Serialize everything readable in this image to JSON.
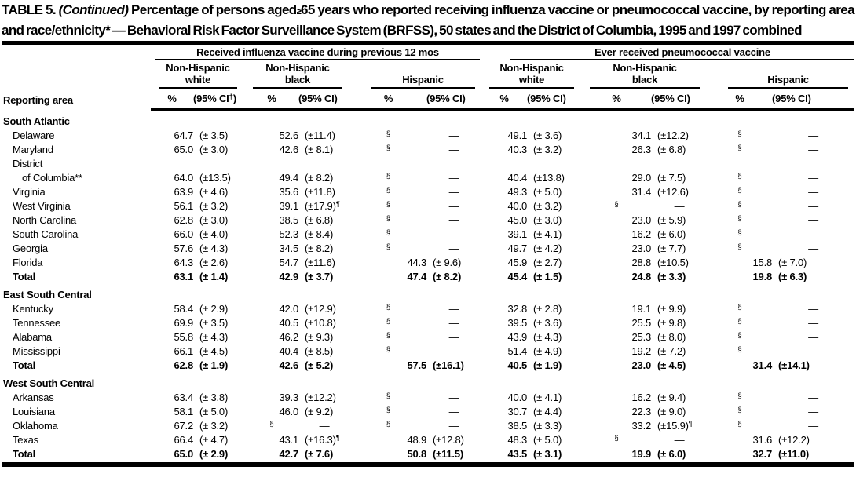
{
  "title": {
    "table_label": "TABLE 5.",
    "continued": "(Continued)",
    "before_geq": "Percentage of persons aged",
    "geq_symbol": "≥",
    "after_geq": "65 years who reported receiving influenza vaccine or pneumococcal vaccine, by reporting area and race/ethnicity* — Behavioral Risk Factor Surveillance System (BRFSS), 50 states and the District of Columbia, 1995 and 1997 combined"
  },
  "table": {
    "row_header": "Reporting area",
    "pct_label": "%",
    "groups": [
      {
        "label": "Received influenza vaccine during previous 12 mos",
        "subs": [
          {
            "l1": "Non-Hispanic",
            "l2": "white",
            "ci": "(95% CI†)"
          },
          {
            "l1": "Non-Hispanic",
            "l2": "black",
            "ci": "(95% CI)"
          },
          {
            "l1": "",
            "l2": "Hispanic",
            "ci": "(95% CI)"
          }
        ]
      },
      {
        "label": "Ever received pneumococcal vaccine",
        "subs": [
          {
            "l1": "Non-Hispanic",
            "l2": "white",
            "ci": "(95% CI)"
          },
          {
            "l1": "Non-Hispanic",
            "l2": "black",
            "ci": "(95% CI)"
          },
          {
            "l1": "",
            "l2": "Hispanic",
            "ci": "(95% CI)"
          }
        ]
      }
    ],
    "sections": [
      {
        "header": "South Atlantic",
        "rows": [
          {
            "area": "Delaware",
            "v": [
              "64.7",
              "(± 3.5)",
              "52.6",
              "(±11.4)",
              "§",
              "—",
              "49.1",
              "(± 3.6)",
              "34.1",
              "(±12.2)",
              "§",
              "—"
            ]
          },
          {
            "area": "Maryland",
            "v": [
              "65.0",
              "(± 3.0)",
              "42.6",
              "(± 8.1)",
              "§",
              "—",
              "40.3",
              "(± 3.2)",
              "26.3",
              "(± 6.8)",
              "§",
              "—"
            ]
          },
          {
            "area": "District",
            "area2": "of Columbia**",
            "v": [
              "64.0",
              "(±13.5)",
              "49.4",
              "(± 8.2)",
              "§",
              "—",
              "40.4",
              "(±13.8)",
              "29.0",
              "(± 7.5)",
              "§",
              "—"
            ]
          },
          {
            "area": "Virginia",
            "v": [
              "63.9",
              "(± 4.6)",
              "35.6",
              "(±11.8)",
              "§",
              "—",
              "49.3",
              "(± 5.0)",
              "31.4",
              "(±12.6)",
              "§",
              "—"
            ]
          },
          {
            "area": "West Virginia",
            "v": [
              "56.1",
              "(± 3.2)",
              "39.1",
              "(±17.9)¶",
              "§",
              "—",
              "40.0",
              "(± 3.2)",
              "§",
              "—",
              "§",
              "—"
            ]
          },
          {
            "area": "North Carolina",
            "v": [
              "62.8",
              "(± 3.0)",
              "38.5",
              "(± 6.8)",
              "§",
              "—",
              "45.0",
              "(± 3.0)",
              "23.0",
              "(± 5.9)",
              "§",
              "—"
            ]
          },
          {
            "area": "South Carolina",
            "v": [
              "66.0",
              "(± 4.0)",
              "52.3",
              "(± 8.4)",
              "§",
              "—",
              "39.1",
              "(± 4.1)",
              "16.2",
              "(± 6.0)",
              "§",
              "—"
            ]
          },
          {
            "area": "Georgia",
            "v": [
              "57.6",
              "(± 4.3)",
              "34.5",
              "(± 8.2)",
              "§",
              "—",
              "49.7",
              "(± 4.2)",
              "23.0",
              "(± 7.7)",
              "§",
              "—"
            ]
          },
          {
            "area": "Florida",
            "v": [
              "64.3",
              "(± 2.6)",
              "54.7",
              "(±11.6)",
              "44.3",
              "(± 9.6)",
              "45.9",
              "(± 2.7)",
              "28.8",
              "(±10.5)",
              "15.8",
              "(± 7.0)"
            ]
          },
          {
            "area": "Total",
            "bold": true,
            "v": [
              "63.1",
              "(± 1.4)",
              "42.9",
              "(± 3.7)",
              "47.4",
              "(± 8.2)",
              "45.4",
              "(± 1.5)",
              "24.8",
              "(± 3.3)",
              "19.8",
              "(± 6.3)"
            ]
          }
        ]
      },
      {
        "header": "East South Central",
        "rows": [
          {
            "area": "Kentucky",
            "v": [
              "58.4",
              "(± 2.9)",
              "42.0",
              "(±12.9)",
              "§",
              "—",
              "32.8",
              "(± 2.8)",
              "19.1",
              "(± 9.9)",
              "§",
              "—"
            ]
          },
          {
            "area": "Tennessee",
            "v": [
              "69.9",
              "(± 3.5)",
              "40.5",
              "(±10.8)",
              "§",
              "—",
              "39.5",
              "(± 3.6)",
              "25.5",
              "(± 9.8)",
              "§",
              "—"
            ]
          },
          {
            "area": "Alabama",
            "v": [
              "55.8",
              "(± 4.3)",
              "46.2",
              "(± 9.3)",
              "§",
              "—",
              "43.9",
              "(± 4.3)",
              "25.3",
              "(± 8.0)",
              "§",
              "—"
            ]
          },
          {
            "area": "Mississippi",
            "v": [
              "66.1",
              "(± 4.5)",
              "40.4",
              "(± 8.5)",
              "§",
              "—",
              "51.4",
              "(± 4.9)",
              "19.2",
              "(± 7.2)",
              "§",
              "—"
            ]
          },
          {
            "area": "Total",
            "bold": true,
            "v": [
              "62.8",
              "(± 1.9)",
              "42.6",
              "(± 5.2)",
              "57.5",
              "(±16.1)",
              "40.5",
              "(± 1.9)",
              "23.0",
              "(± 4.5)",
              "31.4",
              "(±14.1)"
            ]
          }
        ]
      },
      {
        "header": "West South Central",
        "rows": [
          {
            "area": "Arkansas",
            "v": [
              "63.4",
              "(± 3.8)",
              "39.3",
              "(±12.2)",
              "§",
              "—",
              "40.0",
              "(± 4.1)",
              "16.2",
              "(± 9.4)",
              "§",
              "—"
            ]
          },
          {
            "area": "Louisiana",
            "v": [
              "58.1",
              "(± 5.0)",
              "46.0",
              "(± 9.2)",
              "§",
              "—",
              "30.7",
              "(± 4.4)",
              "22.3",
              "(± 9.0)",
              "§",
              "—"
            ]
          },
          {
            "area": "Oklahoma",
            "v": [
              "67.2",
              "(± 3.2)",
              "§",
              "—",
              "§",
              "—",
              "38.5",
              "(± 3.3)",
              "33.2",
              "(±15.9)¶",
              "§",
              "—"
            ]
          },
          {
            "area": "Texas",
            "v": [
              "66.4",
              "(± 4.7)",
              "43.1",
              "(±16.3)¶",
              "48.9",
              "(±12.8)",
              "48.3",
              "(± 5.0)",
              "§",
              "—",
              "31.6",
              "(±12.2)"
            ]
          },
          {
            "area": "Total",
            "bold": true,
            "v": [
              "65.0",
              "(± 2.9)",
              "42.7",
              "(± 7.6)",
              "50.8",
              "(±11.5)",
              "43.5",
              "(± 3.1)",
              "19.9",
              "(± 6.0)",
              "32.7",
              "(±11.0)"
            ]
          }
        ]
      }
    ]
  }
}
